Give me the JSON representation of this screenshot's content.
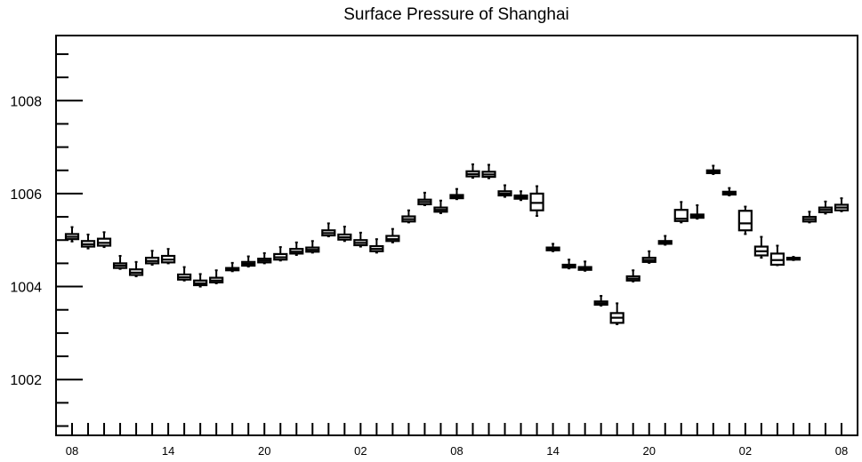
{
  "chart_data": {
    "type": "boxplot",
    "title": "Surface Pressure of Shanghai",
    "xlabel": "",
    "ylabel": "",
    "ylim": [
      1000.8,
      1009.4
    ],
    "yticks": [
      1002,
      1004,
      1006,
      1008
    ],
    "ytick_labels": [
      "1002",
      "1004",
      "1006",
      "1008"
    ],
    "xticks_labeled": [
      {
        "index": 0,
        "label": "08"
      },
      {
        "index": 6,
        "label": "14"
      },
      {
        "index": 12,
        "label": "20"
      },
      {
        "index": 18,
        "label": "02"
      },
      {
        "index": 24,
        "label": "08"
      },
      {
        "index": 30,
        "label": "14"
      },
      {
        "index": 36,
        "label": "20"
      },
      {
        "index": 42,
        "label": "02"
      },
      {
        "index": 48,
        "label": "08"
      }
    ],
    "grid": false,
    "color": "#000000",
    "boxes": [
      {
        "index": 0,
        "min": 1004.97,
        "q1": 1005.02,
        "median": 1005.07,
        "q3": 1005.13,
        "max": 1005.28
      },
      {
        "index": 1,
        "min": 1004.82,
        "q1": 1004.86,
        "median": 1004.91,
        "q3": 1004.98,
        "max": 1005.12
      },
      {
        "index": 2,
        "min": 1004.85,
        "q1": 1004.88,
        "median": 1004.94,
        "q3": 1005.03,
        "max": 1005.17
      },
      {
        "index": 3,
        "min": 1004.38,
        "q1": 1004.4,
        "median": 1004.45,
        "q3": 1004.5,
        "max": 1004.66
      },
      {
        "index": 4,
        "min": 1004.22,
        "q1": 1004.25,
        "median": 1004.3,
        "q3": 1004.37,
        "max": 1004.53
      },
      {
        "index": 5,
        "min": 1004.47,
        "q1": 1004.5,
        "median": 1004.55,
        "q3": 1004.62,
        "max": 1004.77
      },
      {
        "index": 6,
        "min": 1004.5,
        "q1": 1004.52,
        "median": 1004.58,
        "q3": 1004.66,
        "max": 1004.81
      },
      {
        "index": 7,
        "min": 1004.13,
        "q1": 1004.15,
        "median": 1004.2,
        "q3": 1004.26,
        "max": 1004.42
      },
      {
        "index": 8,
        "min": 1004.0,
        "q1": 1004.03,
        "median": 1004.07,
        "q3": 1004.13,
        "max": 1004.27
      },
      {
        "index": 9,
        "min": 1004.07,
        "q1": 1004.09,
        "median": 1004.13,
        "q3": 1004.19,
        "max": 1004.35
      },
      {
        "index": 10,
        "min": 1004.33,
        "q1": 1004.35,
        "median": 1004.37,
        "q3": 1004.4,
        "max": 1004.51
      },
      {
        "index": 11,
        "min": 1004.43,
        "q1": 1004.45,
        "median": 1004.49,
        "q3": 1004.53,
        "max": 1004.65
      },
      {
        "index": 12,
        "min": 1004.5,
        "q1": 1004.52,
        "median": 1004.56,
        "q3": 1004.6,
        "max": 1004.72
      },
      {
        "index": 13,
        "min": 1004.56,
        "q1": 1004.58,
        "median": 1004.63,
        "q3": 1004.7,
        "max": 1004.85
      },
      {
        "index": 14,
        "min": 1004.68,
        "q1": 1004.71,
        "median": 1004.75,
        "q3": 1004.81,
        "max": 1004.95
      },
      {
        "index": 15,
        "min": 1004.73,
        "q1": 1004.75,
        "median": 1004.79,
        "q3": 1004.84,
        "max": 1004.98
      },
      {
        "index": 16,
        "min": 1005.08,
        "q1": 1005.1,
        "median": 1005.15,
        "q3": 1005.21,
        "max": 1005.36
      },
      {
        "index": 17,
        "min": 1004.98,
        "q1": 1005.01,
        "median": 1005.06,
        "q3": 1005.12,
        "max": 1005.29
      },
      {
        "index": 18,
        "min": 1004.86,
        "q1": 1004.89,
        "median": 1004.94,
        "q3": 1005.0,
        "max": 1005.16
      },
      {
        "index": 19,
        "min": 1004.73,
        "q1": 1004.76,
        "median": 1004.81,
        "q3": 1004.87,
        "max": 1005.02
      },
      {
        "index": 20,
        "min": 1004.95,
        "q1": 1004.98,
        "median": 1005.02,
        "q3": 1005.09,
        "max": 1005.24
      },
      {
        "index": 21,
        "min": 1005.38,
        "q1": 1005.4,
        "median": 1005.45,
        "q3": 1005.51,
        "max": 1005.64
      },
      {
        "index": 22,
        "min": 1005.75,
        "q1": 1005.77,
        "median": 1005.82,
        "q3": 1005.87,
        "max": 1006.02
      },
      {
        "index": 23,
        "min": 1005.58,
        "q1": 1005.61,
        "median": 1005.65,
        "q3": 1005.7,
        "max": 1005.85
      },
      {
        "index": 24,
        "min": 1005.88,
        "q1": 1005.9,
        "median": 1005.93,
        "q3": 1005.97,
        "max": 1006.1
      },
      {
        "index": 25,
        "min": 1006.34,
        "q1": 1006.37,
        "median": 1006.42,
        "q3": 1006.48,
        "max": 1006.63
      },
      {
        "index": 26,
        "min": 1006.33,
        "q1": 1006.36,
        "median": 1006.41,
        "q3": 1006.47,
        "max": 1006.62
      },
      {
        "index": 27,
        "min": 1005.93,
        "q1": 1005.96,
        "median": 1006.0,
        "q3": 1006.05,
        "max": 1006.18
      },
      {
        "index": 28,
        "min": 1005.86,
        "q1": 1005.89,
        "median": 1005.92,
        "q3": 1005.96,
        "max": 1006.05
      },
      {
        "index": 29,
        "min": 1005.52,
        "q1": 1005.64,
        "median": 1005.8,
        "q3": 1006.0,
        "max": 1006.16
      },
      {
        "index": 30,
        "min": 1004.76,
        "q1": 1004.78,
        "median": 1004.81,
        "q3": 1004.84,
        "max": 1004.92
      },
      {
        "index": 31,
        "min": 1004.39,
        "q1": 1004.41,
        "median": 1004.44,
        "q3": 1004.47,
        "max": 1004.58
      },
      {
        "index": 32,
        "min": 1004.34,
        "q1": 1004.36,
        "median": 1004.39,
        "q3": 1004.42,
        "max": 1004.54
      },
      {
        "index": 33,
        "min": 1003.59,
        "q1": 1003.61,
        "median": 1003.64,
        "q3": 1003.68,
        "max": 1003.8
      },
      {
        "index": 34,
        "min": 1003.19,
        "q1": 1003.22,
        "median": 1003.33,
        "q3": 1003.43,
        "max": 1003.64
      },
      {
        "index": 35,
        "min": 1004.11,
        "q1": 1004.13,
        "median": 1004.17,
        "q3": 1004.22,
        "max": 1004.35
      },
      {
        "index": 36,
        "min": 1004.51,
        "q1": 1004.53,
        "median": 1004.57,
        "q3": 1004.62,
        "max": 1004.76
      },
      {
        "index": 37,
        "min": 1004.9,
        "q1": 1004.92,
        "median": 1004.95,
        "q3": 1004.98,
        "max": 1005.09
      },
      {
        "index": 38,
        "min": 1005.38,
        "q1": 1005.41,
        "median": 1005.46,
        "q3": 1005.65,
        "max": 1005.82
      },
      {
        "index": 39,
        "min": 1005.46,
        "q1": 1005.48,
        "median": 1005.51,
        "q3": 1005.55,
        "max": 1005.75
      },
      {
        "index": 40,
        "min": 1006.42,
        "q1": 1006.44,
        "median": 1006.47,
        "q3": 1006.5,
        "max": 1006.6
      },
      {
        "index": 41,
        "min": 1005.96,
        "q1": 1005.98,
        "median": 1006.01,
        "q3": 1006.04,
        "max": 1006.12
      },
      {
        "index": 42,
        "min": 1005.13,
        "q1": 1005.21,
        "median": 1005.36,
        "q3": 1005.63,
        "max": 1005.72
      },
      {
        "index": 43,
        "min": 1004.62,
        "q1": 1004.67,
        "median": 1004.76,
        "q3": 1004.86,
        "max": 1005.07
      },
      {
        "index": 44,
        "min": 1004.46,
        "q1": 1004.47,
        "median": 1004.57,
        "q3": 1004.71,
        "max": 1004.88
      },
      {
        "index": 45,
        "min": 1004.57,
        "q1": 1004.58,
        "median": 1004.6,
        "q3": 1004.62,
        "max": 1004.64
      },
      {
        "index": 46,
        "min": 1005.38,
        "q1": 1005.4,
        "median": 1005.45,
        "q3": 1005.5,
        "max": 1005.61
      },
      {
        "index": 47,
        "min": 1005.57,
        "q1": 1005.6,
        "median": 1005.65,
        "q3": 1005.7,
        "max": 1005.83
      },
      {
        "index": 48,
        "min": 1005.62,
        "q1": 1005.64,
        "median": 1005.7,
        "q3": 1005.76,
        "max": 1005.9
      }
    ]
  }
}
